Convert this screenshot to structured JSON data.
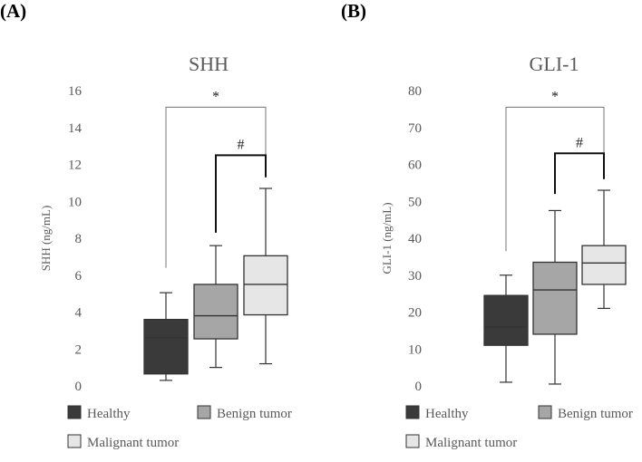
{
  "chart_data": [
    {
      "type": "box",
      "panel_label": "(A)",
      "title": "SHH",
      "ylabel": "SHH (ng/mL)",
      "ylim": [
        0,
        16
      ],
      "yticks": [
        0,
        2,
        4,
        6,
        8,
        10,
        12,
        14,
        16
      ],
      "series": [
        {
          "name": "Healthy",
          "min": 0.3,
          "q1": 0.65,
          "median": 2.6,
          "q3": 3.6,
          "max": 5.05,
          "color": "#3a3a3a"
        },
        {
          "name": "Benign tumor",
          "min": 1.0,
          "q1": 2.55,
          "median": 3.8,
          "q3": 5.5,
          "max": 7.6,
          "color": "#a6a6a6"
        },
        {
          "name": "Malignant tumor",
          "min": 1.2,
          "q1": 3.85,
          "median": 5.5,
          "q3": 7.05,
          "max": 10.7,
          "color": "#e6e6e6"
        }
      ],
      "annotations": [
        {
          "symbol": "*",
          "from": 0,
          "to": 2,
          "from_y": 6.4,
          "to_y": 11.7,
          "top": 15.1,
          "style": "thin"
        },
        {
          "symbol": "#",
          "from": 1,
          "to": 2,
          "from_y": 8.3,
          "to_y": 11.3,
          "top": 12.5,
          "style": "bold"
        }
      ],
      "legend_position": "bottom"
    },
    {
      "type": "box",
      "panel_label": "(B)",
      "title": "GLI-1",
      "ylabel": "GLI-1 (ng/mL)",
      "ylim": [
        0,
        80
      ],
      "yticks": [
        0,
        10,
        20,
        30,
        40,
        50,
        60,
        70,
        80
      ],
      "series": [
        {
          "name": "Healthy",
          "min": 1.0,
          "q1": 11.0,
          "median": 16.0,
          "q3": 24.5,
          "max": 30.0,
          "color": "#3a3a3a"
        },
        {
          "name": "Benign tumor",
          "min": 0.5,
          "q1": 14.0,
          "median": 26.0,
          "q3": 33.5,
          "max": 47.5,
          "color": "#a6a6a6"
        },
        {
          "name": "Malignant tumor",
          "min": 21.0,
          "q1": 27.5,
          "median": 33.3,
          "q3": 38.0,
          "max": 53.0,
          "color": "#e6e6e6"
        }
      ],
      "annotations": [
        {
          "symbol": "*",
          "from": 0,
          "to": 2,
          "from_y": 36.5,
          "to_y": 58.0,
          "top": 75.5,
          "style": "thin"
        },
        {
          "symbol": "#",
          "from": 1,
          "to": 2,
          "from_y": 52.0,
          "to_y": 56.0,
          "top": 63.0,
          "style": "bold"
        }
      ],
      "legend_position": "bottom"
    }
  ]
}
